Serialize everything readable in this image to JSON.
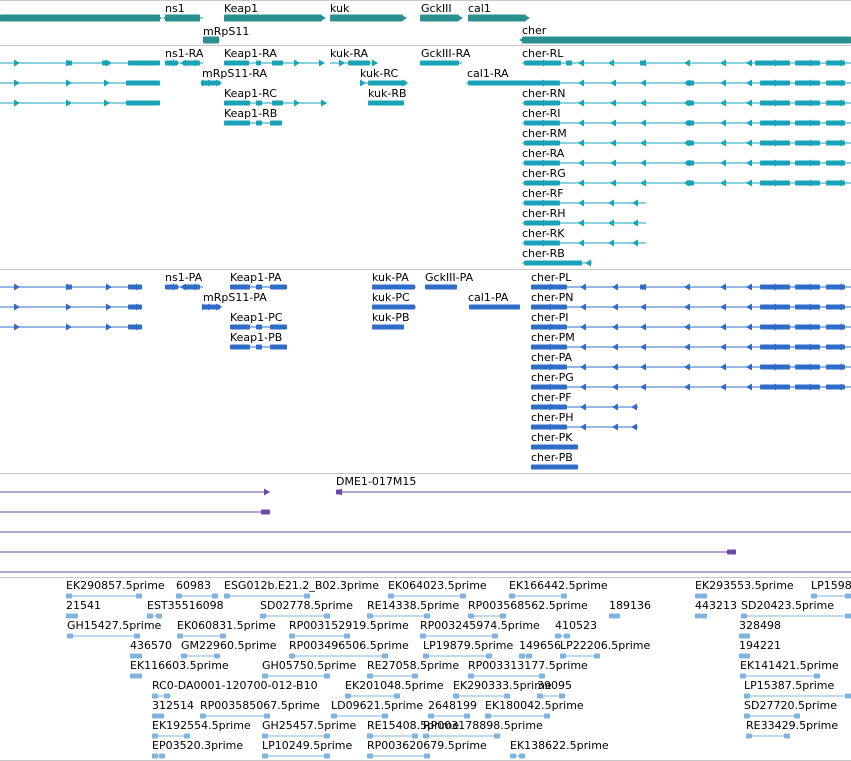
{
  "tracks": {
    "genes": {
      "color": "#2a8f8f",
      "items": [
        {
          "label": "ns1"
        },
        {
          "label": "Keap1"
        },
        {
          "label": "kuk"
        },
        {
          "label": "GckIII"
        },
        {
          "label": "cal1"
        },
        {
          "label": "mRpS11"
        },
        {
          "label": "cher"
        }
      ]
    },
    "transcripts_ra": {
      "color": "#17a3b8",
      "items": [
        {
          "label": "ns1-RA"
        },
        {
          "label": "Keap1-RA"
        },
        {
          "label": "kuk-RA"
        },
        {
          "label": "GckIII-RA"
        },
        {
          "label": "cher-RL"
        },
        {
          "label": "mRpS11-RA"
        },
        {
          "label": "kuk-RC"
        },
        {
          "label": "cal1-RA"
        },
        {
          "label": "Keap1-RC"
        },
        {
          "label": "kuk-RB"
        },
        {
          "label": "cher-RN"
        },
        {
          "label": "Keap1-RB"
        },
        {
          "label": "cher-RI"
        },
        {
          "label": "cher-RM"
        },
        {
          "label": "cher-RA"
        },
        {
          "label": "cher-RG"
        },
        {
          "label": "cher-RF"
        },
        {
          "label": "cher-RH"
        },
        {
          "label": "cher-RK"
        },
        {
          "label": "cher-RB"
        }
      ]
    },
    "proteins": {
      "color": "#2f6cc8",
      "items": [
        {
          "label": "ns1-PA"
        },
        {
          "label": "Keap1-PA"
        },
        {
          "label": "kuk-PA"
        },
        {
          "label": "GckIII-PA"
        },
        {
          "label": "cher-PL"
        },
        {
          "label": "mRpS11-PA"
        },
        {
          "label": "kuk-PC"
        },
        {
          "label": "cal1-PA"
        },
        {
          "label": "cher-PN"
        },
        {
          "label": "Keap1-PC"
        },
        {
          "label": "kuk-PB"
        },
        {
          "label": "cher-PI"
        },
        {
          "label": "Keap1-PB"
        },
        {
          "label": "cher-PM"
        },
        {
          "label": "cher-PA"
        },
        {
          "label": "cher-PG"
        },
        {
          "label": "cher-PF"
        },
        {
          "label": "cher-PH"
        },
        {
          "label": "cher-PK"
        },
        {
          "label": "cher-PB"
        }
      ]
    },
    "clones": {
      "color": "#6a4aa8",
      "items": [
        {
          "label": "DME1-017M15"
        }
      ]
    },
    "ests": {
      "color": "#7fb3e0",
      "items": [
        {
          "label": "EK290857.5prime"
        },
        {
          "label": "60983"
        },
        {
          "label": "ESG012b.E21.2_B02.3prime"
        },
        {
          "label": "EK064023.5prime"
        },
        {
          "label": "EK166442.5prime"
        },
        {
          "label": "EK293553.5prime"
        },
        {
          "label": "LP1598"
        },
        {
          "label": "21541"
        },
        {
          "label": "EST35516098"
        },
        {
          "label": "SD02778.5prime"
        },
        {
          "label": "RE14338.5prime"
        },
        {
          "label": "RP003568562.5prime"
        },
        {
          "label": "189136"
        },
        {
          "label": "443213"
        },
        {
          "label": "SD20423.5prime"
        },
        {
          "label": "GH15427.5prime"
        },
        {
          "label": "EK060831.5prime"
        },
        {
          "label": "RP003152919.5prime"
        },
        {
          "label": "RP003245974.5prime"
        },
        {
          "label": "410523"
        },
        {
          "label": "328498"
        },
        {
          "label": "436570"
        },
        {
          "label": "GM22960.5prime"
        },
        {
          "label": "RP003496506.5prime"
        },
        {
          "label": "LP19879.5prime"
        },
        {
          "label": "149656"
        },
        {
          "label": "LP22206.5prime"
        },
        {
          "label": "194221"
        },
        {
          "label": "EK116603.5prime"
        },
        {
          "label": "GH05750.5prime"
        },
        {
          "label": "RE27058.5prime"
        },
        {
          "label": "RP003313177.5prime"
        },
        {
          "label": "EK141421.5prime"
        },
        {
          "label": "RC0-DA0001-120700-012-B10"
        },
        {
          "label": "EK201048.5prime"
        },
        {
          "label": "EK290333.5prime"
        },
        {
          "label": "39095"
        },
        {
          "label": "LP15387.5prime"
        },
        {
          "label": "312514"
        },
        {
          "label": "RP003585067.5prime"
        },
        {
          "label": "LD09621.5prime"
        },
        {
          "label": "2648199"
        },
        {
          "label": "EK180042.5prime"
        },
        {
          "label": "SD27720.5prime"
        },
        {
          "label": "EK192554.5prime"
        },
        {
          "label": "GH25457.5prime"
        },
        {
          "label": "RE15408.5prime"
        },
        {
          "label": "RP003178898.5prime"
        },
        {
          "label": "RE33429.5prime"
        },
        {
          "label": "EP03520.3prime"
        },
        {
          "label": "LP10249.5prime"
        },
        {
          "label": "RP003620679.5prime"
        },
        {
          "label": "EK138622.5prime"
        }
      ]
    }
  }
}
